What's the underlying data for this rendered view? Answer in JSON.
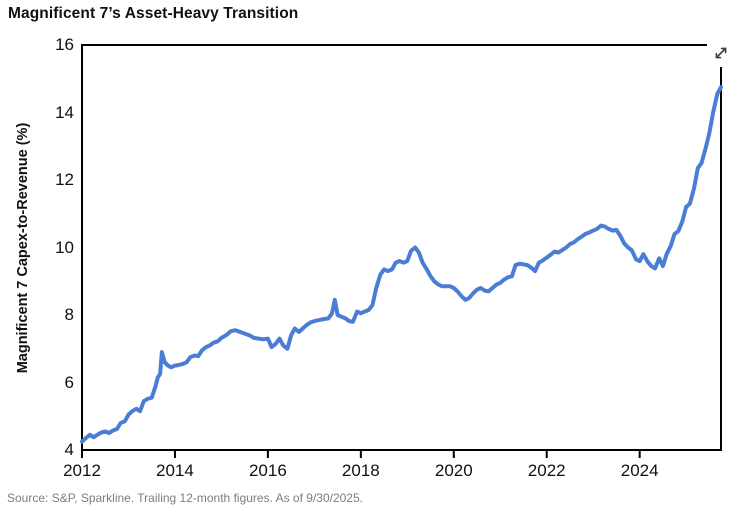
{
  "page": {
    "title": "Magnificent 7’s Asset-Heavy Transition",
    "source_note": "Source: S&P, Sparkline. Trailing 12-month figures. As of 9/30/2025.",
    "background": "#ffffff"
  },
  "icons": {
    "expand": "resize-diagonal-arrows"
  },
  "colors": {
    "line": "#4a7dd3",
    "axis": "#000000",
    "tick_text": "#111111",
    "source_text": "#7d7d7d",
    "icon": "#3f3f3f"
  },
  "chart_data": {
    "type": "line",
    "title": "Magnificent 7’s Asset-Heavy Transition",
    "xlabel": "",
    "ylabel": "Magnificent 7 Capex-to-Revenue (%)",
    "xlim": [
      2012,
      2025.75
    ],
    "ylim": [
      4,
      16
    ],
    "x_ticks": [
      2012,
      2014,
      2016,
      2018,
      2020,
      2022,
      2024
    ],
    "y_ticks": [
      4,
      6,
      8,
      10,
      12,
      14,
      16
    ],
    "grid": false,
    "legend_position": "none",
    "series": [
      {
        "name": "Magnificent 7 Capex-to-Revenue (%)",
        "points": [
          [
            2012.0,
            4.25
          ],
          [
            2012.08,
            4.35
          ],
          [
            2012.17,
            4.45
          ],
          [
            2012.25,
            4.38
          ],
          [
            2012.33,
            4.45
          ],
          [
            2012.42,
            4.52
          ],
          [
            2012.5,
            4.55
          ],
          [
            2012.58,
            4.5
          ],
          [
            2012.67,
            4.58
          ],
          [
            2012.75,
            4.62
          ],
          [
            2012.83,
            4.8
          ],
          [
            2012.92,
            4.85
          ],
          [
            2013.0,
            5.05
          ],
          [
            2013.08,
            5.15
          ],
          [
            2013.17,
            5.22
          ],
          [
            2013.25,
            5.15
          ],
          [
            2013.33,
            5.45
          ],
          [
            2013.42,
            5.52
          ],
          [
            2013.5,
            5.55
          ],
          [
            2013.58,
            5.88
          ],
          [
            2013.63,
            6.15
          ],
          [
            2013.68,
            6.25
          ],
          [
            2013.72,
            6.9
          ],
          [
            2013.78,
            6.6
          ],
          [
            2013.85,
            6.5
          ],
          [
            2013.92,
            6.45
          ],
          [
            2014.0,
            6.5
          ],
          [
            2014.08,
            6.52
          ],
          [
            2014.17,
            6.55
          ],
          [
            2014.25,
            6.6
          ],
          [
            2014.33,
            6.75
          ],
          [
            2014.42,
            6.8
          ],
          [
            2014.5,
            6.78
          ],
          [
            2014.58,
            6.95
          ],
          [
            2014.67,
            7.05
          ],
          [
            2014.75,
            7.1
          ],
          [
            2014.83,
            7.18
          ],
          [
            2014.92,
            7.22
          ],
          [
            2015.0,
            7.32
          ],
          [
            2015.1,
            7.4
          ],
          [
            2015.2,
            7.52
          ],
          [
            2015.3,
            7.55
          ],
          [
            2015.4,
            7.5
          ],
          [
            2015.5,
            7.45
          ],
          [
            2015.6,
            7.4
          ],
          [
            2015.7,
            7.32
          ],
          [
            2015.8,
            7.3
          ],
          [
            2015.9,
            7.28
          ],
          [
            2016.0,
            7.3
          ],
          [
            2016.08,
            7.05
          ],
          [
            2016.17,
            7.15
          ],
          [
            2016.25,
            7.3
          ],
          [
            2016.33,
            7.1
          ],
          [
            2016.42,
            7.0
          ],
          [
            2016.5,
            7.4
          ],
          [
            2016.58,
            7.6
          ],
          [
            2016.67,
            7.5
          ],
          [
            2016.75,
            7.6
          ],
          [
            2016.83,
            7.7
          ],
          [
            2016.92,
            7.78
          ],
          [
            2017.0,
            7.82
          ],
          [
            2017.1,
            7.85
          ],
          [
            2017.2,
            7.88
          ],
          [
            2017.3,
            7.9
          ],
          [
            2017.38,
            8.05
          ],
          [
            2017.44,
            8.45
          ],
          [
            2017.5,
            8.0
          ],
          [
            2017.58,
            7.95
          ],
          [
            2017.67,
            7.9
          ],
          [
            2017.75,
            7.82
          ],
          [
            2017.83,
            7.8
          ],
          [
            2017.92,
            8.1
          ],
          [
            2018.0,
            8.05
          ],
          [
            2018.08,
            8.1
          ],
          [
            2018.17,
            8.15
          ],
          [
            2018.25,
            8.3
          ],
          [
            2018.33,
            8.8
          ],
          [
            2018.42,
            9.2
          ],
          [
            2018.5,
            9.35
          ],
          [
            2018.58,
            9.3
          ],
          [
            2018.67,
            9.35
          ],
          [
            2018.75,
            9.55
          ],
          [
            2018.83,
            9.6
          ],
          [
            2018.92,
            9.55
          ],
          [
            2019.0,
            9.6
          ],
          [
            2019.08,
            9.9
          ],
          [
            2019.17,
            10.0
          ],
          [
            2019.25,
            9.85
          ],
          [
            2019.33,
            9.55
          ],
          [
            2019.42,
            9.35
          ],
          [
            2019.5,
            9.15
          ],
          [
            2019.58,
            9.0
          ],
          [
            2019.67,
            8.9
          ],
          [
            2019.75,
            8.85
          ],
          [
            2019.83,
            8.85
          ],
          [
            2019.92,
            8.85
          ],
          [
            2020.0,
            8.8
          ],
          [
            2020.08,
            8.7
          ],
          [
            2020.17,
            8.55
          ],
          [
            2020.25,
            8.45
          ],
          [
            2020.33,
            8.5
          ],
          [
            2020.42,
            8.65
          ],
          [
            2020.5,
            8.75
          ],
          [
            2020.58,
            8.8
          ],
          [
            2020.67,
            8.72
          ],
          [
            2020.75,
            8.7
          ],
          [
            2020.83,
            8.8
          ],
          [
            2020.92,
            8.9
          ],
          [
            2021.0,
            8.95
          ],
          [
            2021.08,
            9.05
          ],
          [
            2021.17,
            9.12
          ],
          [
            2021.25,
            9.15
          ],
          [
            2021.33,
            9.48
          ],
          [
            2021.42,
            9.52
          ],
          [
            2021.5,
            9.5
          ],
          [
            2021.58,
            9.48
          ],
          [
            2021.67,
            9.4
          ],
          [
            2021.75,
            9.3
          ],
          [
            2021.83,
            9.55
          ],
          [
            2021.92,
            9.62
          ],
          [
            2022.0,
            9.7
          ],
          [
            2022.08,
            9.78
          ],
          [
            2022.17,
            9.88
          ],
          [
            2022.25,
            9.85
          ],
          [
            2022.33,
            9.92
          ],
          [
            2022.42,
            10.0
          ],
          [
            2022.5,
            10.1
          ],
          [
            2022.58,
            10.15
          ],
          [
            2022.67,
            10.25
          ],
          [
            2022.75,
            10.32
          ],
          [
            2022.83,
            10.4
          ],
          [
            2022.92,
            10.45
          ],
          [
            2023.0,
            10.5
          ],
          [
            2023.08,
            10.55
          ],
          [
            2023.17,
            10.65
          ],
          [
            2023.25,
            10.62
          ],
          [
            2023.33,
            10.55
          ],
          [
            2023.42,
            10.5
          ],
          [
            2023.5,
            10.52
          ],
          [
            2023.58,
            10.35
          ],
          [
            2023.67,
            10.12
          ],
          [
            2023.75,
            10.0
          ],
          [
            2023.83,
            9.92
          ],
          [
            2023.92,
            9.65
          ],
          [
            2024.0,
            9.6
          ],
          [
            2024.08,
            9.8
          ],
          [
            2024.17,
            9.58
          ],
          [
            2024.25,
            9.45
          ],
          [
            2024.33,
            9.38
          ],
          [
            2024.42,
            9.68
          ],
          [
            2024.5,
            9.45
          ],
          [
            2024.58,
            9.8
          ],
          [
            2024.67,
            10.05
          ],
          [
            2024.75,
            10.4
          ],
          [
            2024.83,
            10.48
          ],
          [
            2024.92,
            10.78
          ],
          [
            2025.0,
            11.2
          ],
          [
            2025.08,
            11.3
          ],
          [
            2025.17,
            11.75
          ],
          [
            2025.25,
            12.35
          ],
          [
            2025.33,
            12.5
          ],
          [
            2025.42,
            12.95
          ],
          [
            2025.5,
            13.4
          ],
          [
            2025.58,
            14.0
          ],
          [
            2025.67,
            14.55
          ],
          [
            2025.75,
            14.75
          ]
        ]
      }
    ]
  }
}
